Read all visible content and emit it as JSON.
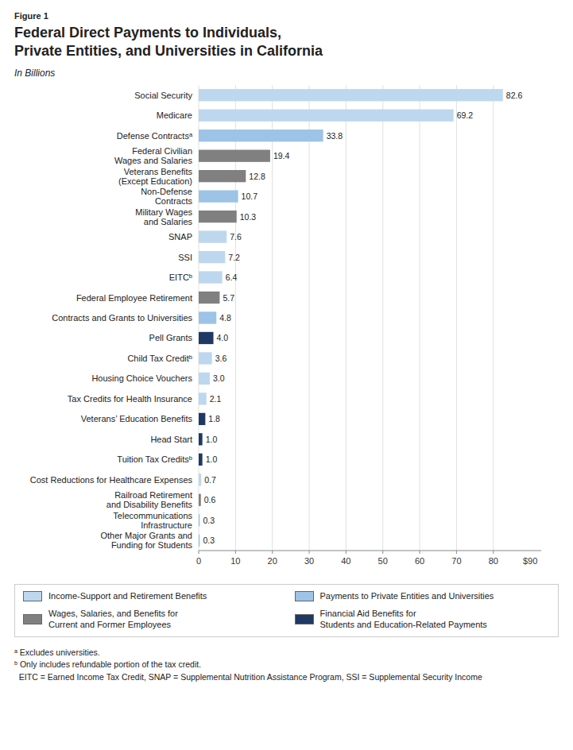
{
  "chart_data": {
    "type": "bar",
    "orientation": "horizontal",
    "figure_label": "Figure 1",
    "title": "Federal Direct Payments to Individuals,\nPrivate Entities, and Universities in California",
    "subtitle": "In Billions",
    "categories": [
      "Social Security",
      "Medicare",
      "Defense Contractsᵃ",
      "Federal Civilian\nWages and Salaries",
      "Veterans Benefits\n(Except Education)",
      "Non-Defense\nContracts",
      "Military Wages\nand Salaries",
      "SNAP",
      "SSI",
      "EITCᵇ",
      "Federal Employee Retirement",
      "Contracts and Grants to Universities",
      "Pell Grants",
      "Child Tax Creditᵇ",
      "Housing Choice Vouchers",
      "Tax Credits for Health Insurance",
      "Veterans’ Education Benefits",
      "Head Start",
      "Tuition Tax Creditsᵇ",
      "Cost Reductions for Healthcare Expenses",
      "Railroad Retirement\nand Disability Benefits",
      "Telecommunications\nInfrastructure",
      "Other Major Grants and\nFunding for Students"
    ],
    "values": [
      82.6,
      69.2,
      33.8,
      19.4,
      12.8,
      10.7,
      10.3,
      7.6,
      7.2,
      6.4,
      5.7,
      4.8,
      4.0,
      3.6,
      3.0,
      2.1,
      1.8,
      1.0,
      1.0,
      0.7,
      0.6,
      0.3,
      0.3
    ],
    "value_labels": [
      "82.6",
      "69.2",
      "33.8",
      "19.4",
      "12.8",
      "10.7",
      "10.3",
      "7.6",
      "7.2",
      "6.4",
      "5.7",
      "4.8",
      "4.0",
      "3.6",
      "3.0",
      "2.1",
      "1.8",
      "1.0",
      "1.0",
      "0.7",
      "0.6",
      "0.3",
      "0.3"
    ],
    "colors": [
      "#bdd7ee",
      "#bdd7ee",
      "#9dc3e6",
      "#808080",
      "#808080",
      "#9dc3e6",
      "#808080",
      "#bdd7ee",
      "#bdd7ee",
      "#bdd7ee",
      "#808080",
      "#9dc3e6",
      "#1f3864",
      "#bdd7ee",
      "#bdd7ee",
      "#bdd7ee",
      "#1f3864",
      "#1f3864",
      "#1f3864",
      "#bdd7ee",
      "#808080",
      "#9dc3e6",
      "#9dc3e6"
    ],
    "xlim": [
      0,
      93
    ],
    "xticks": [
      0,
      10,
      20,
      30,
      40,
      50,
      60,
      70,
      80
    ],
    "annotations": [
      {
        "text": "$90",
        "x": 90
      }
    ],
    "grid": true,
    "data_labels": true,
    "legend": "bottom",
    "legend_items": [
      {
        "label": "Income-Support and Retirement Benefits",
        "color": "#bdd7ee"
      },
      {
        "label": "Payments to Private Entities and Universities",
        "color": "#9dc3e6"
      },
      {
        "label": "Wages, Salaries, and Benefits for\nCurrent and Former Employees",
        "color": "#808080"
      },
      {
        "label": "Financial Aid Benefits for\nStudents and Education-Related Payments",
        "color": "#1f3864"
      }
    ],
    "footnotes": [
      "ᵃ Excludes universities.",
      "ᵇ Only includes refundable portion of the tax credit.",
      "  EITC = Earned Income Tax Credit, SNAP = Supplemental Nutrition Assistance Program, SSI = Supplemental Security Income"
    ]
  }
}
